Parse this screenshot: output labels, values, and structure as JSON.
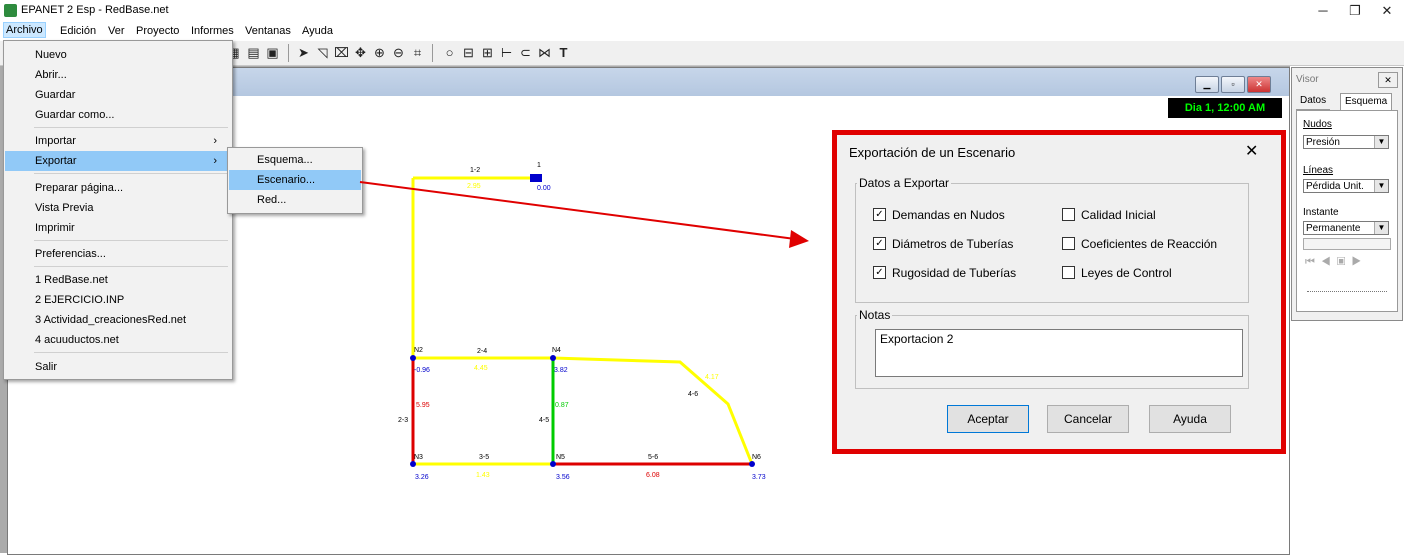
{
  "window": {
    "title": "EPANET 2 Esp - RedBase.net",
    "minimize": "─",
    "maximize": "❐",
    "close": "✕"
  },
  "menubar": [
    "Archivo",
    "Edición",
    "Ver",
    "Proyecto",
    "Informes",
    "Ventanas",
    "Ayuda"
  ],
  "archivo_menu": {
    "items": [
      "Nuevo",
      "Abrir...",
      "Guardar",
      "Guardar como...",
      "Importar",
      "Exportar",
      "Preparar página...",
      "Vista Previa",
      "Imprimir",
      "Preferencias...",
      "1 RedBase.net",
      "2 EJERCICIO.INP",
      "3 Actividad_creacionesRed.net",
      "4 acuuductos.net",
      "Salir"
    ],
    "submenu_arrow": "›"
  },
  "export_submenu": [
    "Esquema...",
    "Escenario...",
    "Red..."
  ],
  "time_display": "Dia 1, 12:00 AM",
  "network": {
    "pipes": {
      "p12": "1-2",
      "p24": "2-4",
      "p23": "2-3",
      "p45": "4-5",
      "p46": "4-6",
      "p35": "3-5",
      "p56": "5-6"
    },
    "pipe_values": {
      "p12": "2.95",
      "p24": "4.45",
      "p23": "5.95",
      "p45": "0.87",
      "p46": "4.17",
      "p35": "1.43",
      "p56": "6.08"
    },
    "nodes": {
      "n1": "1",
      "n2": "N2",
      "n3": "N3",
      "n4": "N4",
      "n5": "N5",
      "n6": "N6"
    },
    "node_values": {
      "n1": "0.00",
      "n2": "-0.96",
      "n3": "3.26",
      "n4": "3.82",
      "n5": "3.56",
      "n6": "3.73"
    },
    "colors": {
      "yellow": "#ffff00",
      "red": "#dd0000",
      "green": "#00cc00",
      "blue": "#0000cc"
    }
  },
  "dialog": {
    "title": "Exportación de un Escenario",
    "close": "✕",
    "group_export": "Datos a Exportar",
    "checks": {
      "demandas": {
        "label": "Demandas en Nudos",
        "mark": "✓"
      },
      "diametros": {
        "label": "Diámetros de Tuberías",
        "mark": "✓"
      },
      "rugosidad": {
        "label": "Rugosidad de Tuberías",
        "mark": "✓"
      },
      "calidad": {
        "label": "Calidad Inicial",
        "mark": ""
      },
      "coeficientes": {
        "label": "Coeficientes de Reacción",
        "mark": ""
      },
      "leyes": {
        "label": "Leyes de Control",
        "mark": ""
      }
    },
    "group_notes": "Notas",
    "notes_value": "Exportacion 2",
    "buttons": {
      "accept": "Aceptar",
      "cancel": "Cancelar",
      "help": "Ayuda"
    }
  },
  "visor": {
    "title": "Visor",
    "close": "✕",
    "tabs": [
      "Datos",
      "Esquema"
    ],
    "nudos_label": "Nudos",
    "nudos_value": "Presión",
    "lineas_label": "Líneas",
    "lineas_value": "Pérdida Unit.",
    "instante_label": "Instante",
    "instante_value": "Permanente",
    "dropdown": "▼"
  }
}
